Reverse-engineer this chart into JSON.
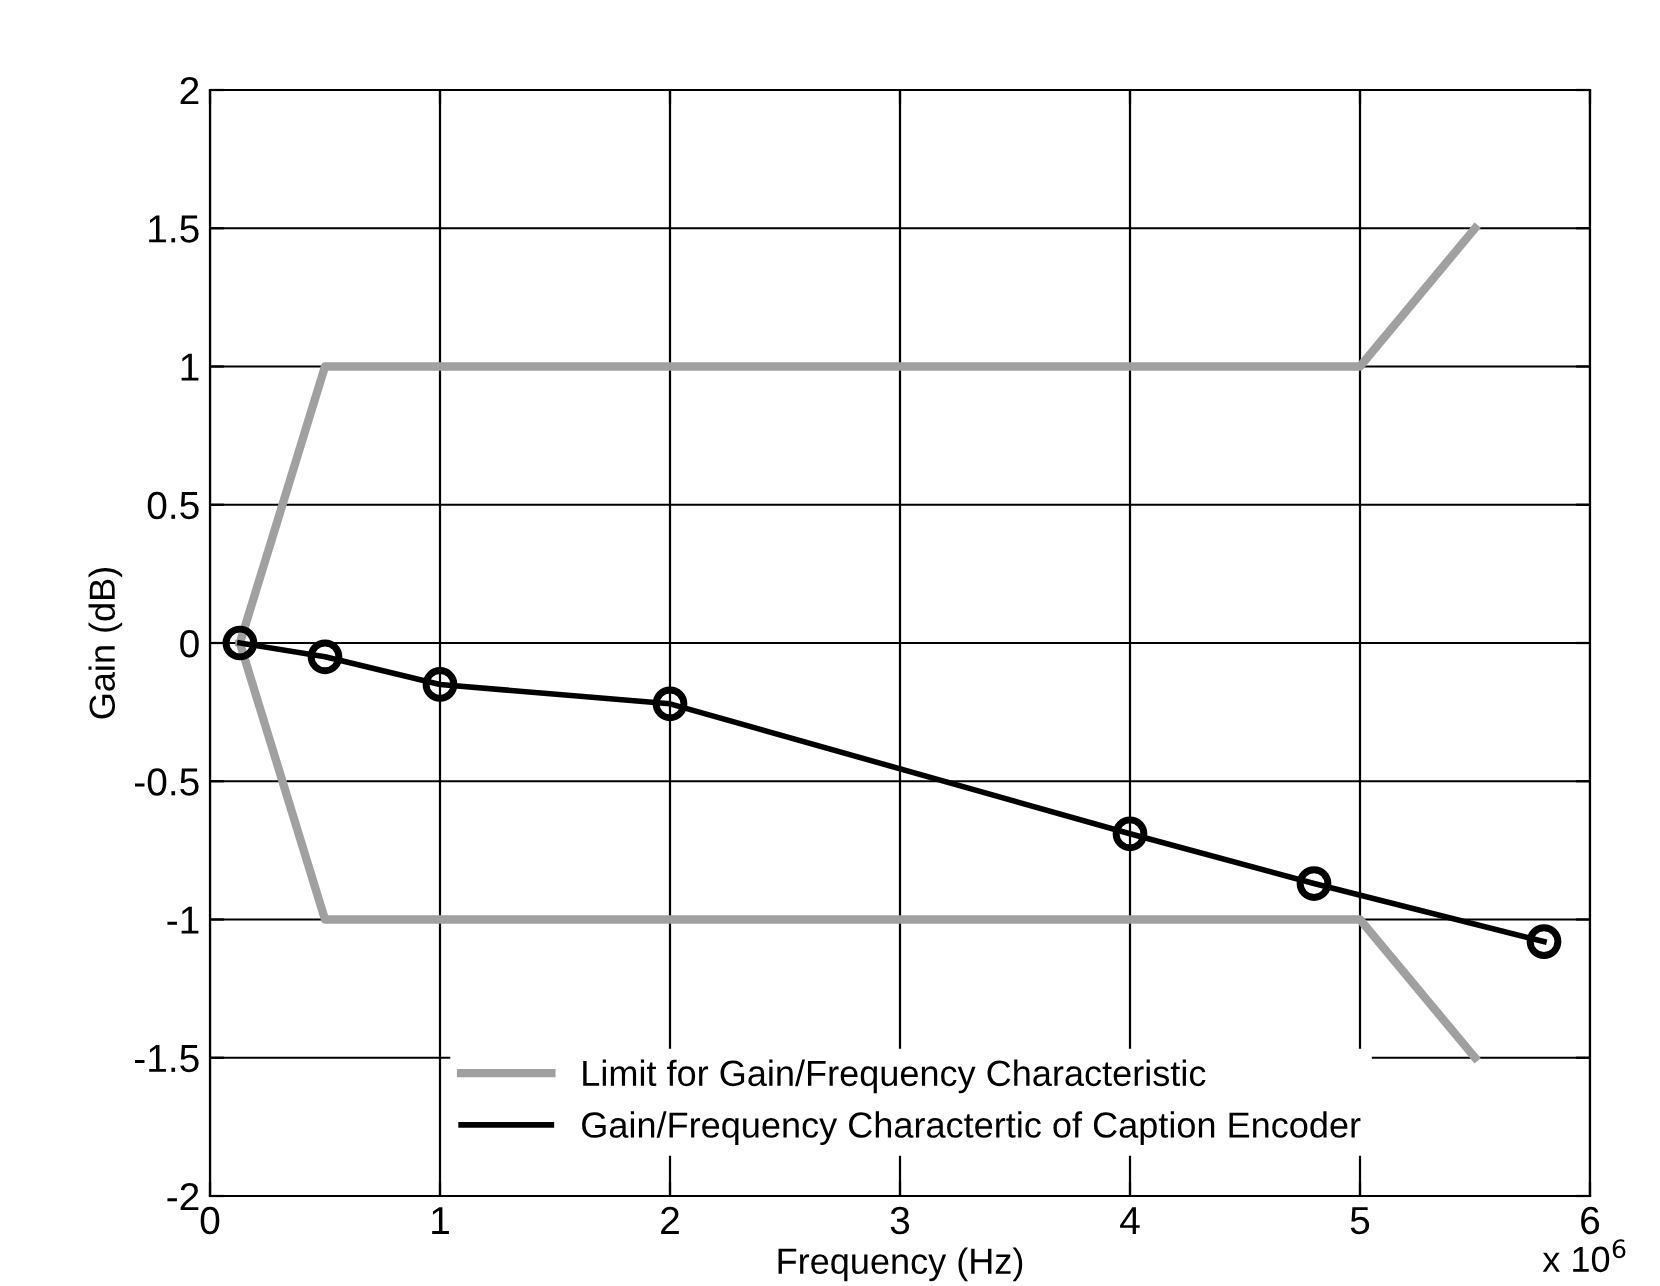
{
  "chart_data": {
    "type": "line",
    "xlabel": "Frequency (Hz)",
    "ylabel": "Gain (dB)",
    "annotations": [
      "x 10$^{6}$"
    ],
    "series": [
      {
        "name": "Limit for Gain/Frequency Characteristic",
        "color": "#a0a0a0",
        "x": [
          0.13,
          0.5,
          5,
          5.5
        ],
        "values": [
          0,
          1,
          1,
          1.5
        ],
        "marker": "none"
      },
      {
        "color": "#a0a0a0",
        "x": [
          0.13,
          0.5,
          5,
          5.5
        ],
        "values": [
          0,
          -1,
          -1,
          -1.5
        ],
        "marker": "none"
      },
      {
        "name": "Gain/Frequency Charactertic of Caption Encoder",
        "color": "#000000",
        "x": [
          0.13,
          0.5,
          1,
          2,
          4,
          4.8,
          5.8
        ],
        "values": [
          0,
          -0.05,
          -0.15,
          -0.22,
          -0.69,
          -0.87,
          -1.08
        ],
        "marker": "circle"
      }
    ],
    "xlim": [
      0,
      6
    ],
    "xticks": [
      0,
      1,
      2,
      3,
      4,
      5,
      6
    ],
    "ylim": [
      -2,
      2
    ],
    "yticks": [
      -2,
      -1.5,
      -1,
      -0.5,
      0,
      0.5,
      1,
      1.5,
      2
    ],
    "grid": true,
    "legend": "bottom",
    "line_style": "solid"
  }
}
